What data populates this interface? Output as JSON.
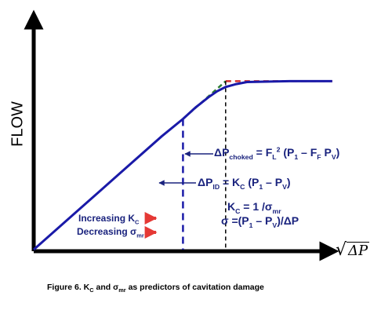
{
  "chart_data": {
    "type": "line",
    "title": "",
    "ylabel": "FLOW",
    "xlabel_symbol": "ΔP",
    "series": [
      {
        "values": [
          [
            0,
            0
          ],
          [
            0.2,
            0.13
          ],
          [
            0.4,
            0.26
          ],
          [
            0.6,
            0.39
          ],
          [
            0.7,
            0.45
          ],
          [
            0.76,
            0.49
          ],
          [
            0.82,
            0.525
          ],
          [
            0.86,
            0.545
          ],
          [
            0.9,
            0.56
          ],
          [
            0.95,
            0.57
          ],
          [
            1.0,
            0.577
          ],
          [
            1.2,
            0.58
          ],
          [
            1.4,
            0.58
          ]
        ]
      }
    ],
    "reference_lines": {
      "linear_extension": [
        [
          0.7,
          0.45
        ],
        [
          0.9,
          0.58
        ]
      ],
      "choked_plateau": [
        [
          0.9,
          0.58
        ],
        [
          1.4,
          0.58
        ]
      ],
      "dp_id_at": 0.7,
      "dp_choked_at": 0.9
    },
    "annotations": {
      "dp_choked": {
        "delta": "ΔP",
        "sub": "choked",
        "eq": " = F",
        "fl_sub": "L",
        "fl_sup": "2",
        "rest1": " (P",
        "p1_sub": "1",
        "rest2": " – F",
        "ff_sub": "F",
        "rest3": " P",
        "pv_sub": "V",
        "end": ")"
      },
      "dp_id": {
        "delta": "ΔP",
        "sub": "ID",
        "eq": " = K",
        "kc_sub": "C",
        "rest1": " (P",
        "p1_sub": "1",
        "rest2": " – P",
        "pv_sub": "V",
        "end": ")"
      },
      "kc_eq": {
        "k": "K",
        "k_sub": "C",
        "rest": " = 1 /σ",
        "s_sub": "mr"
      },
      "sigma_eq": {
        "start": "σ =(P",
        "p1_sub": "1",
        "mid": " – P",
        "pv_sub": "V",
        "end": ")/ΔP"
      },
      "increasing": {
        "text": "Increasing K",
        "sub": "C"
      },
      "decreasing": {
        "text": "Decreasing σ",
        "sub": "mr"
      }
    },
    "colors": {
      "curve": "#1a1aa8",
      "axes": "#000000",
      "extension": "#2e7d32",
      "plateau": "#d32f2f",
      "arrows": "#e53935",
      "text": "#1a237e"
    }
  },
  "caption": {
    "start": "Figure 6. K",
    "k_sub": "C",
    "mid": " and σ",
    "s_sub": "mr",
    "end": " as predictors of cavitation damage"
  }
}
